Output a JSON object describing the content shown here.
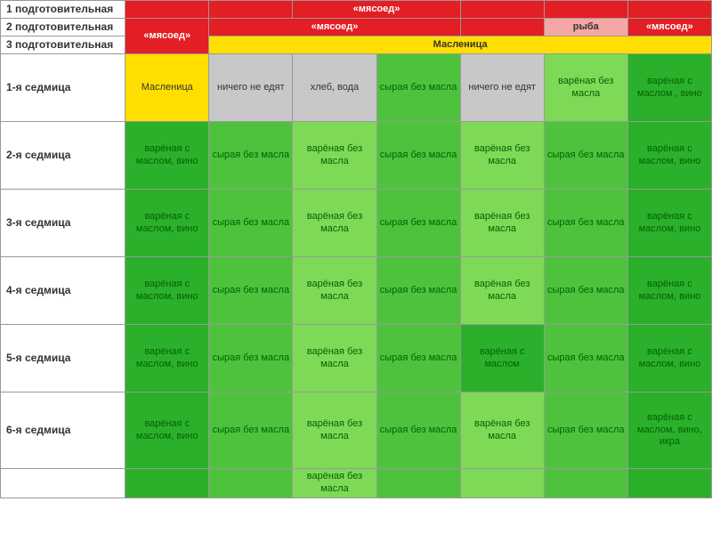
{
  "colors": {
    "red": "#e31e24",
    "pink": "#f7a6a6",
    "yellow": "#ffde00",
    "grey": "#c8c8c8",
    "green_light": "#7ed957",
    "green_mid": "#4fc23d",
    "green_dark": "#2bb02b",
    "white": "#ffffff",
    "text_green": "#006400",
    "text_dark": "#333333"
  },
  "row_labels": {
    "prep1": "1 подготовительная",
    "prep2": "2 подготовительная",
    "prep3": "3 подготовительная",
    "w1": "1-я седмица",
    "w2": "2-я седмица",
    "w3": "3-я седмица",
    "w4": "4-я седмица",
    "w5": "5-я седмица",
    "w6": "6-я седмица"
  },
  "header": {
    "myasoed": "«мясоед»",
    "ryba": "рыба",
    "maslenitsa": "Масленица"
  },
  "cells": {
    "maslenitsa": "Масленица",
    "nothing": "ничего не едят",
    "bread_water": "хлеб, вода",
    "syra_bez_masla": "сырая без масла",
    "varenaya_bez_masla": "варёная без масла",
    "varenaya_s_maslom_vino": "варёная с маслом, вино",
    "varenaya_s_maslom": "варёная с маслом",
    "varenaya_s_maslom_vino_ikra": "варёная с маслом, вино, икра"
  },
  "styles": {
    "title_fontsize": 11,
    "cell_fontsize": 11,
    "label_fontsize": 12
  },
  "layout": {
    "columns": 8,
    "col0_width": 140,
    "data_col_width": 94
  },
  "grid": {
    "top_row0": [
      {
        "bg": "red",
        "fg": "white",
        "text": ""
      },
      {
        "bg": "red",
        "fg": "white",
        "text": ""
      },
      {
        "bg": "red",
        "fg": "white",
        "text": "«мясоед»",
        "span": 2
      },
      {
        "bg": "red",
        "fg": "white",
        "text": ""
      },
      {
        "bg": "red",
        "fg": "white",
        "text": ""
      },
      {
        "bg": "red",
        "fg": "white",
        "text": ""
      }
    ],
    "top_row1": [
      {
        "bg": "red",
        "fg": "white",
        "text": "«мясоед»",
        "span": 3
      },
      {
        "bg": "red",
        "fg": "white",
        "text": "«мясоед»"
      },
      {
        "bg": "red",
        "fg": "white",
        "text": ""
      },
      {
        "bg": "pink",
        "fg": "dark",
        "text": "рыба"
      },
      {
        "bg": "red",
        "fg": "white",
        "text": "«мясоед»"
      }
    ],
    "top_row2_label": "Масленица",
    "week1": [
      {
        "bg": "yellow",
        "text": "Масленица",
        "fg": "dark"
      },
      {
        "bg": "grey",
        "text": "ничего не едят",
        "fg": "dark"
      },
      {
        "bg": "grey",
        "text": "хлеб, вода",
        "fg": "dark"
      },
      {
        "bg": "green_mid",
        "text": "сырая без масла",
        "fg": "green"
      },
      {
        "bg": "grey",
        "text": "ничего не едят",
        "fg": "dark"
      },
      {
        "bg": "green_light",
        "text": "варёная без масла",
        "fg": "green"
      },
      {
        "bg": "green_dark",
        "text": "варёная с маслом , вино",
        "fg": "green"
      }
    ],
    "week_generic": [
      {
        "bg": "green_dark",
        "text": "варёная с маслом, вино",
        "fg": "green"
      },
      {
        "bg": "green_mid",
        "text": "сырая без масла",
        "fg": "green"
      },
      {
        "bg": "green_light",
        "text": "варёная без масла",
        "fg": "green"
      },
      {
        "bg": "green_mid",
        "text": "сырая без масла",
        "fg": "green"
      },
      {
        "bg": "green_light",
        "text": "варёная без масла",
        "fg": "green"
      },
      {
        "bg": "green_mid",
        "text": "сырая без масла",
        "fg": "green"
      },
      {
        "bg": "green_dark",
        "text": "варёная с маслом, вино",
        "fg": "green"
      }
    ],
    "week5": [
      {
        "bg": "green_dark",
        "text": "варёная с маслом, вино",
        "fg": "green"
      },
      {
        "bg": "green_mid",
        "text": "сырая без масла",
        "fg": "green"
      },
      {
        "bg": "green_light",
        "text": "варёная без масла",
        "fg": "green"
      },
      {
        "bg": "green_mid",
        "text": "сырая без масла",
        "fg": "green"
      },
      {
        "bg": "green_dark",
        "text": "варёная с маслом",
        "fg": "green"
      },
      {
        "bg": "green_mid",
        "text": "сырая без масла",
        "fg": "green"
      },
      {
        "bg": "green_dark",
        "text": "варёная с маслом, вино",
        "fg": "green"
      }
    ],
    "week6": [
      {
        "bg": "green_dark",
        "text": "варёная с маслом, вино",
        "fg": "green"
      },
      {
        "bg": "green_mid",
        "text": "сырая без масла",
        "fg": "green"
      },
      {
        "bg": "green_light",
        "text": "варёная без масла",
        "fg": "green"
      },
      {
        "bg": "green_mid",
        "text": "сырая без масла",
        "fg": "green"
      },
      {
        "bg": "green_light",
        "text": "варёная без масла",
        "fg": "green"
      },
      {
        "bg": "green_mid",
        "text": "сырая без масла",
        "fg": "green"
      },
      {
        "bg": "green_dark",
        "text": "варёная с маслом, вино, икра",
        "fg": "green"
      }
    ]
  }
}
